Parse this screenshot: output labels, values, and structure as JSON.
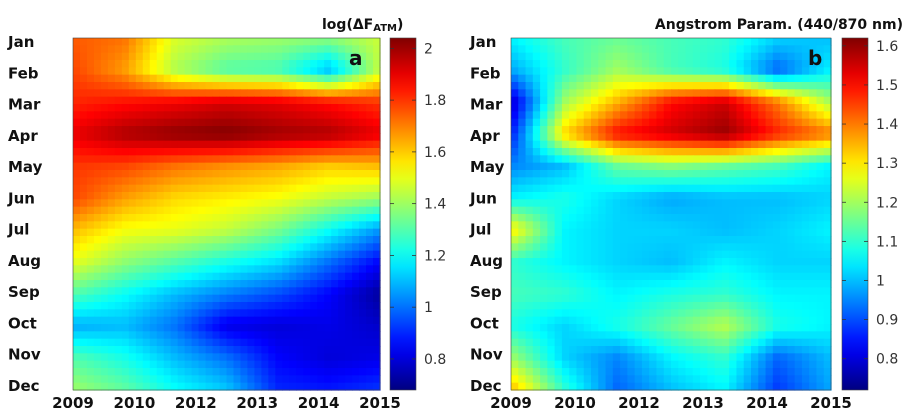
{
  "chart_data": [
    {
      "type": "heatmap",
      "panel_label": "a",
      "colorbar_title_prefix": "log(",
      "colorbar_title_delta": "ΔF",
      "colorbar_title_sub": "ATM",
      "colorbar_title_suffix": ")",
      "colorbar_range": [
        0.68,
        2.04
      ],
      "colorbar_ticks": [
        "2",
        "1.8",
        "1.6",
        "1.4",
        "1.2",
        "1",
        "0.8"
      ],
      "colorbar_tick_values": [
        2,
        1.8,
        1.6,
        1.4,
        1.2,
        1,
        0.8
      ],
      "x_tick_labels": [
        "2009",
        "2010",
        "2012",
        "2013",
        "2014",
        "2015"
      ],
      "x": [
        2009,
        2010,
        2011,
        2012,
        2013,
        2014,
        2015
      ],
      "y_tick_labels": [
        "Jan",
        "Feb",
        "Mar",
        "Apr",
        "May",
        "Jun",
        "Jul",
        "Aug",
        "Sep",
        "Oct",
        "Nov",
        "Dec"
      ],
      "colormap": "jet",
      "z": [
        [
          1.75,
          1.72,
          1.48,
          1.42,
          1.4,
          1.38,
          1.46
        ],
        [
          1.78,
          1.66,
          1.42,
          1.3,
          1.28,
          1.1,
          1.45
        ],
        [
          1.82,
          1.85,
          1.88,
          1.92,
          1.9,
          1.85,
          1.8
        ],
        [
          1.9,
          1.98,
          2.02,
          2.04,
          2.0,
          1.98,
          1.9
        ],
        [
          1.8,
          1.78,
          1.72,
          1.68,
          1.65,
          1.6,
          1.62
        ],
        [
          1.78,
          1.66,
          1.58,
          1.55,
          1.52,
          1.45,
          1.4
        ],
        [
          1.62,
          1.52,
          1.5,
          1.45,
          1.35,
          1.2,
          1.05
        ],
        [
          1.5,
          1.38,
          1.3,
          1.22,
          1.15,
          1.0,
          0.85
        ],
        [
          1.3,
          1.2,
          1.1,
          1.02,
          0.95,
          0.85,
          0.72
        ],
        [
          1.08,
          1.1,
          1.0,
          0.82,
          0.8,
          0.82,
          0.78
        ],
        [
          1.3,
          1.22,
          1.1,
          1.0,
          0.85,
          0.8,
          0.82
        ],
        [
          1.4,
          1.32,
          1.2,
          1.12,
          0.9,
          0.88,
          0.92
        ]
      ]
    },
    {
      "type": "heatmap",
      "panel_label": "b",
      "colorbar_title": "Angstrom Param. (440/870 nm)",
      "colorbar_range": [
        0.72,
        1.62
      ],
      "colorbar_ticks": [
        "1.6",
        "1.5",
        "1.4",
        "1.3",
        "1.2",
        "1.1",
        "1",
        "0.9",
        "0.8"
      ],
      "colorbar_tick_values": [
        1.6,
        1.5,
        1.4,
        1.3,
        1.2,
        1.1,
        1.0,
        0.9,
        0.8
      ],
      "x_tick_labels": [
        "2009",
        "2010",
        "2012",
        "2013",
        "2014",
        "2015"
      ],
      "x": [
        2009,
        2010,
        2011,
        2012,
        2013,
        2014,
        2015
      ],
      "y_tick_labels": [
        "Jan",
        "Feb",
        "Mar",
        "Apr",
        "May",
        "Jun",
        "Jul",
        "Aug",
        "Sep",
        "Oct",
        "Nov",
        "Dec"
      ],
      "colormap": "jet",
      "z": [
        [
          1.05,
          1.12,
          1.15,
          1.12,
          1.1,
          1.02,
          1.0
        ],
        [
          0.98,
          1.1,
          1.2,
          1.12,
          1.08,
          0.92,
          1.05
        ],
        [
          0.78,
          1.2,
          1.35,
          1.5,
          1.55,
          1.4,
          1.2
        ],
        [
          0.85,
          1.32,
          1.5,
          1.55,
          1.6,
          1.48,
          1.4
        ],
        [
          0.95,
          1.0,
          1.15,
          1.18,
          1.15,
          1.12,
          1.05
        ],
        [
          1.05,
          1.08,
          1.02,
          0.98,
          1.0,
          1.0,
          1.02
        ],
        [
          1.3,
          1.05,
          1.02,
          1.02,
          1.0,
          1.02,
          1.05
        ],
        [
          1.1,
          1.05,
          1.02,
          1.0,
          1.05,
          1.02,
          1.02
        ],
        [
          1.12,
          1.1,
          1.05,
          1.08,
          1.1,
          1.05,
          1.05
        ],
        [
          1.08,
          1.02,
          1.08,
          1.15,
          1.22,
          1.08,
          1.05
        ],
        [
          1.2,
          1.02,
          0.95,
          1.05,
          1.1,
          0.92,
          1.0
        ],
        [
          1.35,
          1.1,
          0.92,
          1.0,
          1.05,
          0.88,
          0.98
        ]
      ]
    }
  ]
}
